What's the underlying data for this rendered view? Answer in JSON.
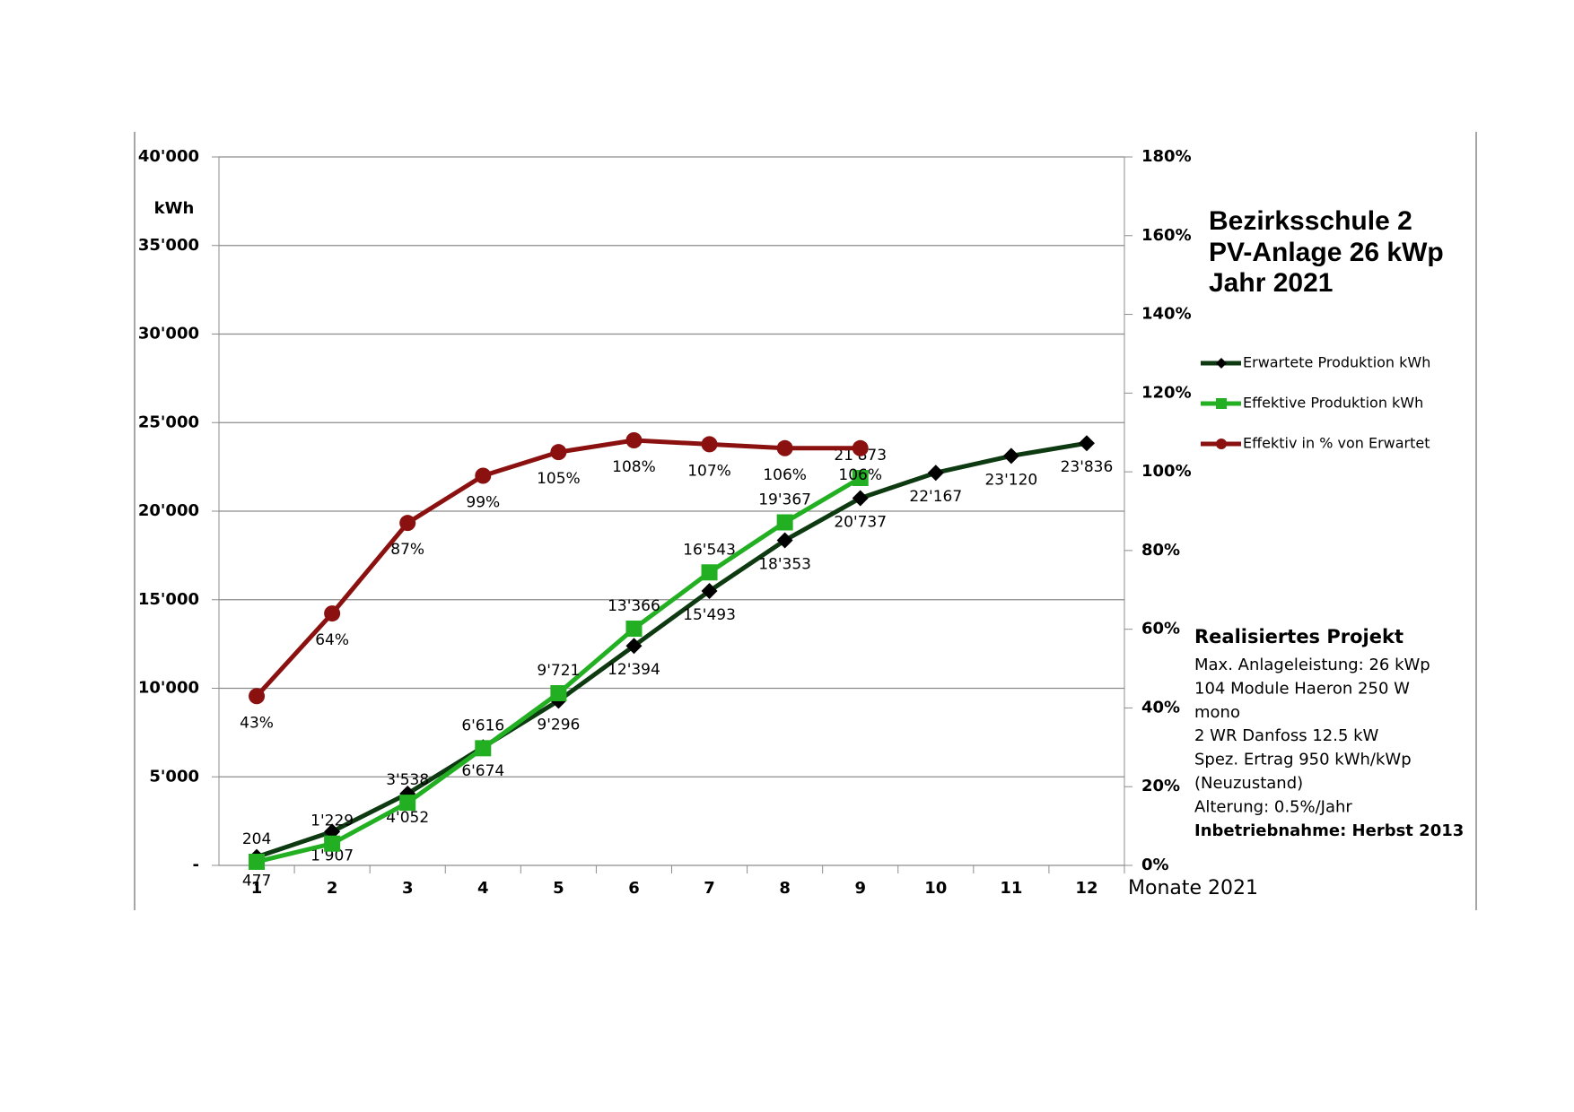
{
  "chart_data": {
    "type": "line",
    "title": [
      "Bezirksschule 2",
      "PV-Anlage 26 kWp",
      "Jahr 2021"
    ],
    "y_label": "kWh",
    "x_label": "Monate 2021",
    "categories": [
      "1",
      "2",
      "3",
      "4",
      "5",
      "6",
      "7",
      "8",
      "9",
      "10",
      "11",
      "12"
    ],
    "series": [
      {
        "name": "Erwartete Produktion kWh",
        "color": "#0e3a12",
        "marker": "diamond",
        "values": [
          477,
          1907,
          4052,
          6674,
          9296,
          12394,
          15493,
          18353,
          20737,
          22167,
          23120,
          23836
        ],
        "value_labels": [
          "477",
          "1'907",
          "4'052",
          "6'674",
          "9'296",
          "12'394",
          "15'493",
          "18'353",
          "20'737",
          "22'167",
          "23'120",
          "23'836"
        ]
      },
      {
        "name": "Effektive Produktion kWh",
        "color": "#22b022",
        "marker": "square",
        "values": [
          204,
          1229,
          3538,
          6616,
          9721,
          13366,
          16543,
          19367,
          21873,
          null,
          null,
          null
        ],
        "value_labels": [
          "204",
          "1'229",
          "3'538",
          "6'616",
          "9'721",
          "13'366",
          "16'543",
          "19'367",
          "21'873",
          null,
          null,
          null
        ]
      },
      {
        "name": "Effektiv in % von Erwartet",
        "color": "#8b1010",
        "marker": "circle",
        "axis": "y2",
        "values": [
          43,
          64,
          87,
          99,
          105,
          108,
          107,
          106,
          106,
          null,
          null,
          null
        ],
        "value_labels": [
          "43%",
          "64%",
          "87%",
          "99%",
          "105%",
          "108%",
          "107%",
          "106%",
          "106%",
          null,
          null,
          null
        ]
      }
    ],
    "ylim": [
      0,
      40000
    ],
    "yticks": [
      {
        "value": 0,
        "label": "-"
      },
      {
        "value": 5000,
        "label": "5'000"
      },
      {
        "value": 10000,
        "label": "10'000"
      },
      {
        "value": 15000,
        "label": "15'000"
      },
      {
        "value": 20000,
        "label": "20'000"
      },
      {
        "value": 25000,
        "label": "25'000"
      },
      {
        "value": 30000,
        "label": "30'000"
      },
      {
        "value": 35000,
        "label": "35'000"
      },
      {
        "value": 40000,
        "label": "40'000"
      }
    ],
    "y2lim": [
      0,
      180
    ],
    "y2ticks": [
      {
        "value": 0,
        "label": "0%"
      },
      {
        "value": 20,
        "label": "20%"
      },
      {
        "value": 40,
        "label": "40%"
      },
      {
        "value": 60,
        "label": "60%"
      },
      {
        "value": 80,
        "label": "80%"
      },
      {
        "value": 100,
        "label": "100%"
      },
      {
        "value": 120,
        "label": "120%"
      },
      {
        "value": 140,
        "label": "140%"
      },
      {
        "value": 160,
        "label": "160%"
      },
      {
        "value": 180,
        "label": "180%"
      }
    ],
    "grid": true,
    "legend": "right",
    "info": {
      "heading": "Realisiertes Projekt",
      "lines": [
        "Max. Anlageleistung: 26 kWp",
        "104 Module Haeron 250 W",
        "mono",
        "2 WR Danfoss 12.5 kW",
        "Spez. Ertrag 950 kWh/kWp",
        "(Neuzustand)",
        "Alterung: 0.5%/Jahr"
      ],
      "footer": "Inbetriebnahme: Herbst 2013"
    }
  }
}
